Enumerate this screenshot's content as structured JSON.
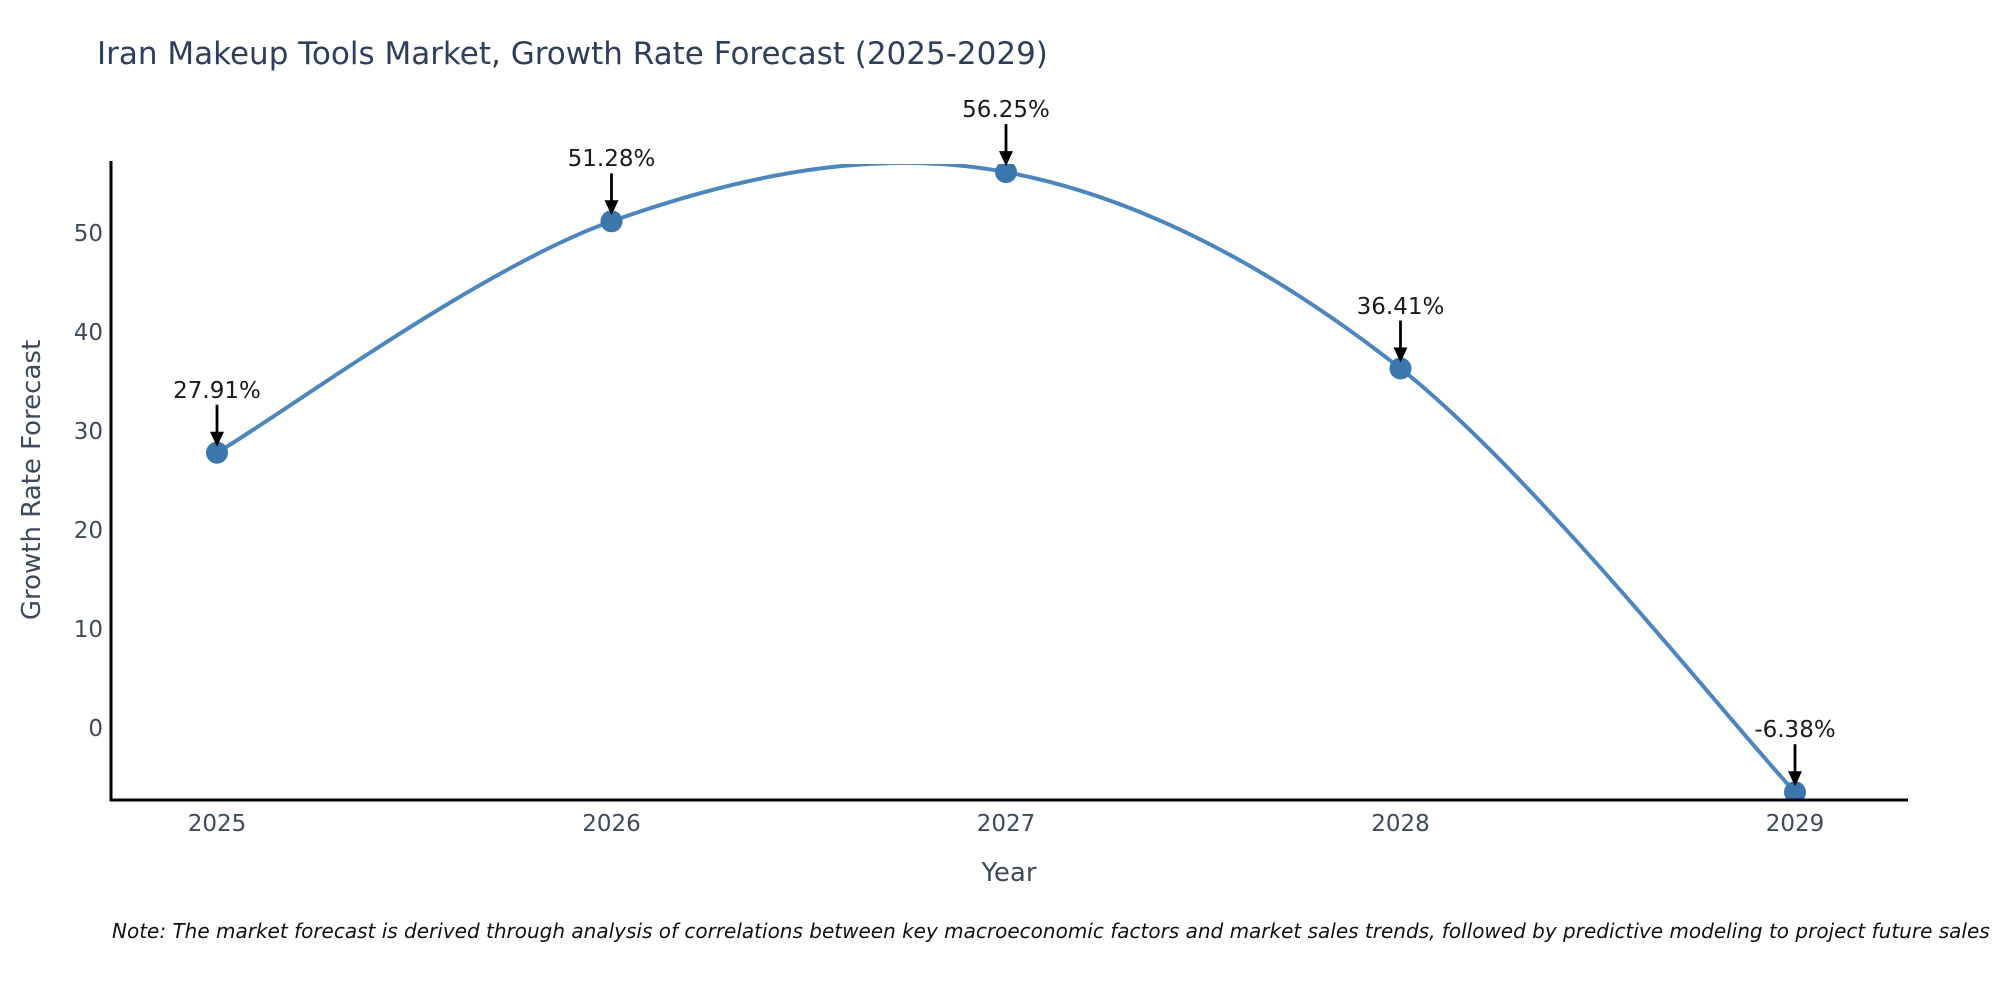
{
  "chart_data": {
    "type": "line",
    "title": "Iran Makeup Tools Market, Growth Rate Forecast (2025-2029)",
    "xlabel": "Year",
    "ylabel": "Growth Rate Forecast",
    "x": [
      2025,
      2026,
      2027,
      2028,
      2029
    ],
    "series": [
      {
        "name": "Growth Rate Forecast",
        "values": [
          27.91,
          51.28,
          56.25,
          36.41,
          -6.38
        ]
      }
    ],
    "point_labels": [
      "27.91%",
      "51.28%",
      "56.25%",
      "36.41%",
      "-6.38%"
    ],
    "yticks": [
      0,
      10,
      20,
      30,
      40,
      50
    ],
    "ylim": [
      -7.2,
      57.4
    ],
    "xlim": [
      2024.73,
      2029.28
    ],
    "grid": false,
    "legend": "none",
    "line_color": "#4d86bd",
    "marker_color": "#3b76ad",
    "axis_color": "#000000",
    "annotation_arrow_color": "#000000",
    "curve_style": "smooth spline, clipped at top of axes (visible gap at peak between 2026 and 2027)",
    "note": "Note: The market forecast is derived through analysis of correlations between key macroeconomic factors and market sales trends, followed by predictive modeling to project future sales"
  }
}
